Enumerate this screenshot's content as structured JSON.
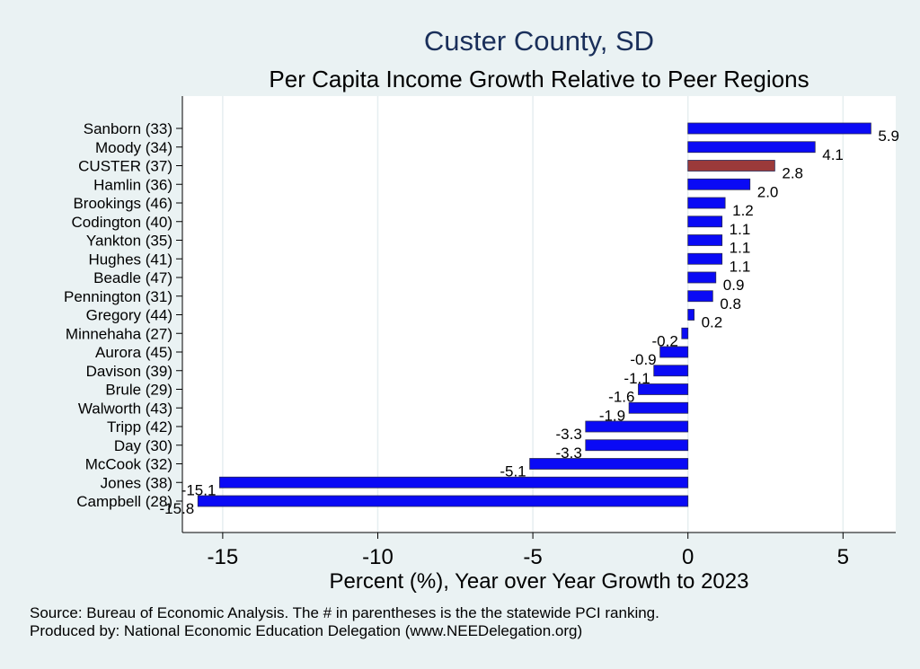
{
  "chart_data": {
    "type": "bar",
    "orientation": "horizontal",
    "title": "Custer County, SD",
    "subtitle": "Per Capita Income Growth Relative to Peer Regions",
    "xlabel": "Percent (%), Year over Year Growth to 2023",
    "xlim": [
      -16.3,
      6.7
    ],
    "xticks": [
      -15,
      -10,
      -5,
      0,
      5
    ],
    "grid": true,
    "colors": {
      "default": "#0a0af5",
      "highlight": "#9b3a3a",
      "title": "#1a2f5a"
    },
    "categories": [
      "Sanborn (33)",
      "Moody (34)",
      "CUSTER (37)",
      "Hamlin (36)",
      "Brookings (46)",
      "Codington (40)",
      "Yankton (35)",
      "Hughes (41)",
      "Beadle (47)",
      "Pennington (31)",
      "Gregory (44)",
      "Minnehaha (27)",
      "Aurora (45)",
      "Davison (39)",
      "Brule (29)",
      "Walworth (43)",
      "Tripp (42)",
      "Day (30)",
      "McCook (32)",
      "Jones (38)",
      "Campbell (28)"
    ],
    "values": [
      5.9,
      4.1,
      2.8,
      2.0,
      1.2,
      1.1,
      1.1,
      1.1,
      0.9,
      0.8,
      0.2,
      -0.2,
      -0.9,
      -1.1,
      -1.6,
      -1.9,
      -3.3,
      -3.3,
      -5.1,
      -15.1,
      -15.8
    ],
    "labels": [
      "5.9",
      "4.1",
      "2.8",
      "2.0",
      "1.2",
      "1.1",
      "1.1",
      "1.1",
      "0.9",
      "0.8",
      "0.2",
      "-0.2",
      "-0.9",
      "-1.1",
      "-1.6",
      "-1.9",
      "-3.3",
      "-3.3",
      "-5.1",
      "-15.1",
      "-15.8"
    ],
    "highlight_category": "CUSTER (37)"
  },
  "footer": {
    "source": "Source: Bureau of Economic Analysis. The # in parentheses is the the statewide PCI ranking.",
    "producer": "Produced by: National Economic Education Delegation (www.NEEDelegation.org)"
  }
}
